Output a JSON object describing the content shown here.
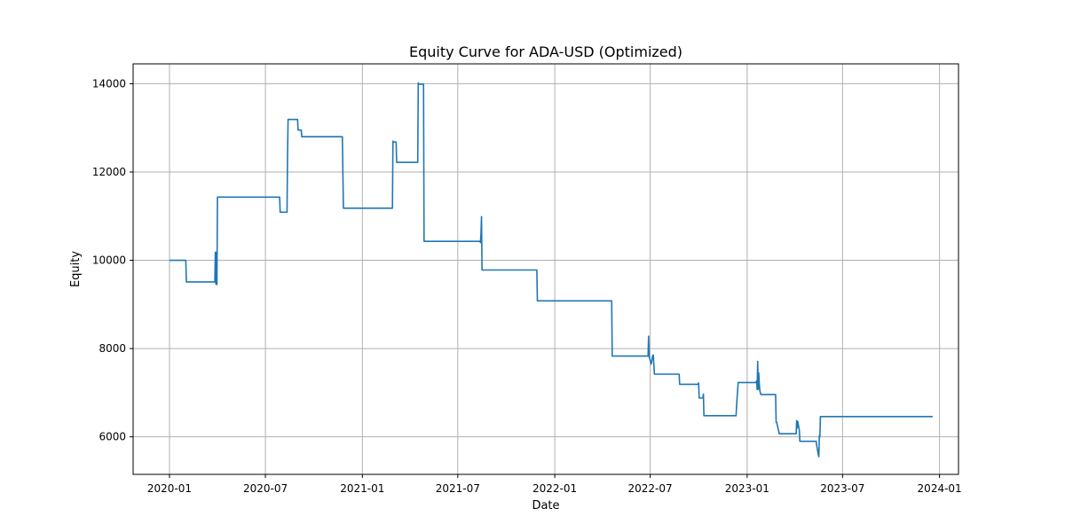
{
  "chart_data": {
    "type": "line",
    "title": "Equity Curve for ADA-USD (Optimized)",
    "xlabel": "Date",
    "ylabel": "Equity",
    "grid": true,
    "legend": "none",
    "xlim": [
      "2019-10-24",
      "2024-02-06"
    ],
    "ylim": [
      5150,
      14450
    ],
    "x_ticks": [
      {
        "date": "2020-01-01",
        "label": "2020-01"
      },
      {
        "date": "2020-07-01",
        "label": "2020-07"
      },
      {
        "date": "2021-01-01",
        "label": "2021-01"
      },
      {
        "date": "2021-07-01",
        "label": "2021-07"
      },
      {
        "date": "2022-01-01",
        "label": "2022-01"
      },
      {
        "date": "2022-07-01",
        "label": "2022-07"
      },
      {
        "date": "2023-01-01",
        "label": "2023-01"
      },
      {
        "date": "2023-07-01",
        "label": "2023-07"
      },
      {
        "date": "2024-01-01",
        "label": "2024-01"
      }
    ],
    "y_ticks": [
      6000,
      8000,
      10000,
      12000,
      14000
    ],
    "series": [
      {
        "color": "#1f77b4",
        "x": [
          "2020-01-01",
          "2020-02-01",
          "2020-02-02",
          "2020-03-27",
          "2020-03-28",
          "2020-03-29",
          "2020-03-30",
          "2020-03-31",
          "2020-04-01",
          "2020-07-28",
          "2020-07-29",
          "2020-08-11",
          "2020-08-12",
          "2020-08-13",
          "2020-08-31",
          "2020-09-01",
          "2020-09-07",
          "2020-09-08",
          "2020-11-24",
          "2020-11-26",
          "2021-02-27",
          "2021-02-28",
          "2021-03-01",
          "2021-03-06",
          "2021-03-07",
          "2021-04-16",
          "2021-04-17",
          "2021-04-18",
          "2021-04-27",
          "2021-04-28",
          "2021-08-12",
          "2021-08-13",
          "2021-08-14",
          "2021-08-15",
          "2021-08-16",
          "2021-11-28",
          "2021-11-29",
          "2022-04-19",
          "2022-04-20",
          "2022-06-27",
          "2022-06-28",
          "2022-06-29",
          "2022-07-03",
          "2022-07-06",
          "2022-07-07",
          "2022-07-09",
          "2022-07-11",
          "2022-08-25",
          "2022-08-26",
          "2022-09-30",
          "2022-10-01",
          "2022-10-02",
          "2022-10-09",
          "2022-10-10",
          "2022-10-11",
          "2022-12-11",
          "2022-12-12",
          "2022-12-15",
          "2023-01-18",
          "2023-01-19",
          "2023-01-20",
          "2023-01-21",
          "2023-01-22",
          "2023-01-23",
          "2023-01-24",
          "2023-01-25",
          "2023-01-27",
          "2023-01-28",
          "2023-02-24",
          "2023-02-25",
          "2023-02-26",
          "2023-03-03",
          "2023-03-04",
          "2023-04-04",
          "2023-04-05",
          "2023-04-06",
          "2023-04-07",
          "2023-04-10",
          "2023-04-11",
          "2023-05-12",
          "2023-05-13",
          "2023-05-16",
          "2023-05-17",
          "2023-05-18",
          "2023-05-19",
          "2023-05-20",
          "2023-12-19"
        ],
        "y": [
          10000,
          10000,
          9510,
          9510,
          10180,
          9460,
          10180,
          9450,
          11430,
          11430,
          11090,
          11090,
          12400,
          13190,
          13190,
          12950,
          12950,
          12800,
          12800,
          11180,
          11180,
          12700,
          12680,
          12680,
          12220,
          12220,
          14020,
          13990,
          13990,
          10430,
          10430,
          10400,
          10600,
          10990,
          9780,
          9780,
          9080,
          9080,
          7830,
          7830,
          8280,
          7820,
          7650,
          7850,
          7850,
          7420,
          7420,
          7420,
          7190,
          7190,
          7220,
          6880,
          6880,
          6970,
          6480,
          6480,
          6720,
          7230,
          7230,
          7270,
          7070,
          7710,
          7080,
          7450,
          7210,
          7050,
          6960,
          6960,
          6960,
          6330,
          6330,
          6070,
          6070,
          6070,
          6370,
          6200,
          6350,
          6150,
          5900,
          5900,
          5800,
          5600,
          5550,
          6030,
          6000,
          6460,
          6460
        ]
      }
    ]
  }
}
